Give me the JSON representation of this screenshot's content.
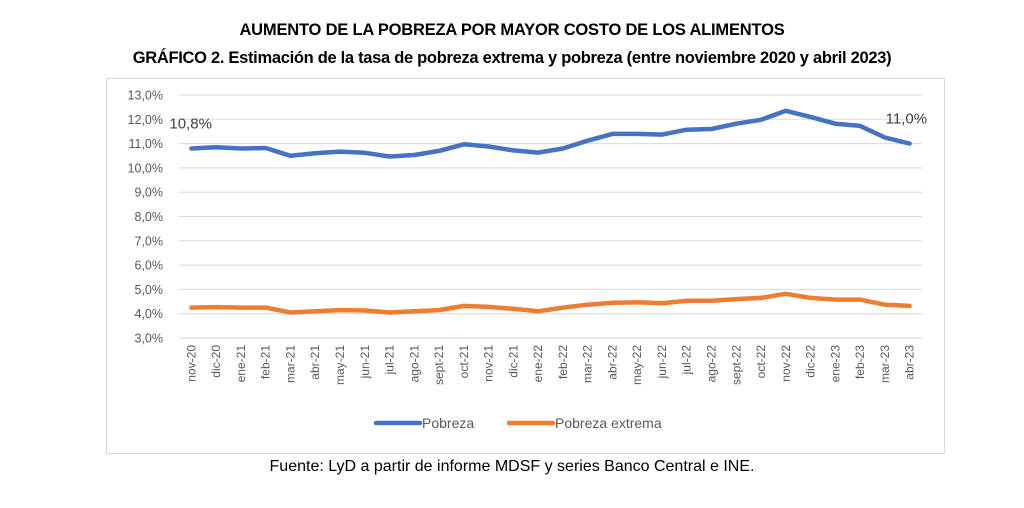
{
  "header": {
    "title": "AUMENTO DE LA POBREZA POR MAYOR COSTO DE LOS ALIMENTOS",
    "subtitle": "GRÁFICO 2. Estimación de la tasa de pobreza extrema y pobreza (entre noviembre 2020 y abril 2023)"
  },
  "footer": {
    "source": "Fuente: LyD a partir de informe MDSF y series Banco Central e INE."
  },
  "chart_data": {
    "type": "line",
    "title": "GRÁFICO 2. Estimación de la tasa de pobreza extrema y pobreza (entre noviembre 2020 y abril 2023)",
    "xlabel": "",
    "ylabel": "",
    "ylim": [
      3.0,
      13.0
    ],
    "yticks": [
      "13,0%",
      "12,0%",
      "11,0%",
      "10,0%",
      "9,0%",
      "8,0%",
      "7,0%",
      "6,0%",
      "5,0%",
      "4,0%",
      "3,0%"
    ],
    "ytick_values": [
      13,
      12,
      11,
      10,
      9,
      8,
      7,
      6,
      5,
      4,
      3
    ],
    "grid": true,
    "legend": "bottom",
    "categories": [
      "nov-20",
      "dic-20",
      "ene-21",
      "feb-21",
      "mar-21",
      "abr-21",
      "may-21",
      "jun-21",
      "jul-21",
      "ago-21",
      "sept-21",
      "oct-21",
      "nov-21",
      "dic-21",
      "ene-22",
      "feb-22",
      "mar-22",
      "abr-22",
      "may-22",
      "jun-22",
      "jul-22",
      "ago-22",
      "sept-22",
      "oct-22",
      "nov-22",
      "dic-22",
      "ene-23",
      "feb-23",
      "mar-23",
      "abr-23"
    ],
    "series": [
      {
        "name": "Pobreza",
        "color": "#4472c4",
        "values": [
          10.8,
          10.85,
          10.8,
          10.82,
          10.5,
          10.6,
          10.67,
          10.62,
          10.47,
          10.53,
          10.7,
          10.97,
          10.88,
          10.72,
          10.63,
          10.8,
          11.12,
          11.4,
          11.4,
          11.37,
          11.57,
          11.6,
          11.82,
          11.98,
          12.35,
          12.1,
          11.82,
          11.73,
          11.25,
          11.0
        ],
        "annotations": [
          {
            "index": 0,
            "text": "10,8%"
          },
          {
            "index": 29,
            "text": "11,0%"
          }
        ]
      },
      {
        "name": "Pobreza extrema",
        "color": "#ed7d31",
        "values": [
          4.25,
          4.27,
          4.25,
          4.25,
          4.05,
          4.1,
          4.15,
          4.13,
          4.05,
          4.1,
          4.15,
          4.32,
          4.28,
          4.2,
          4.1,
          4.25,
          4.37,
          4.45,
          4.47,
          4.43,
          4.53,
          4.53,
          4.6,
          4.65,
          4.82,
          4.65,
          4.58,
          4.58,
          4.37,
          4.32
        ]
      }
    ]
  }
}
